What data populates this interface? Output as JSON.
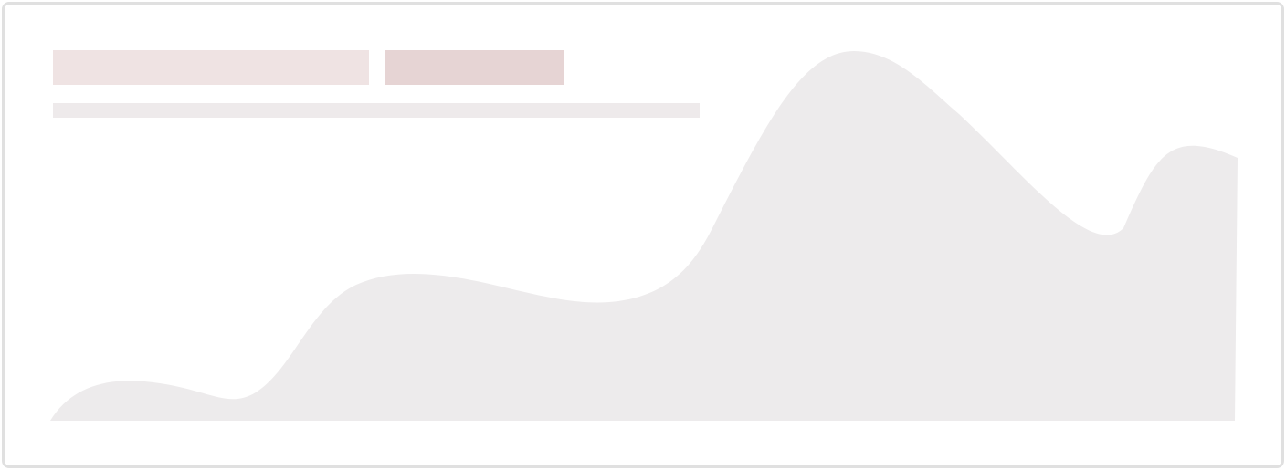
{
  "skeleton": {
    "state": "loading",
    "title_color": "#efe3e3",
    "badge_color": "#e6d4d4",
    "subtitle_color": "#eeeaeb",
    "area_color": "#edebec",
    "frame_border_color": "#e0e0e0"
  }
}
